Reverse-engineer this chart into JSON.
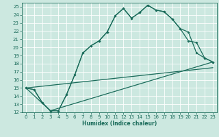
{
  "title": "",
  "xlabel": "Humidex (Indice chaleur)",
  "bg_color": "#cce8e0",
  "grid_color": "#ffffff",
  "line_color": "#1a6b5a",
  "xlim": [
    -0.5,
    23.5
  ],
  "ylim": [
    12,
    25.5
  ],
  "xticks": [
    0,
    1,
    2,
    3,
    4,
    5,
    6,
    7,
    8,
    9,
    10,
    11,
    12,
    13,
    14,
    15,
    16,
    17,
    18,
    19,
    20,
    21,
    22,
    23
  ],
  "yticks": [
    12,
    13,
    14,
    15,
    16,
    17,
    18,
    19,
    20,
    21,
    22,
    23,
    24,
    25
  ],
  "line1_x": [
    0,
    1,
    2,
    3,
    4,
    5,
    6,
    7,
    8,
    9,
    10,
    11,
    12,
    13,
    14,
    15,
    16,
    17,
    18,
    19,
    20,
    21,
    22,
    23
  ],
  "line1_y": [
    15,
    14.8,
    13.2,
    12.2,
    12.2,
    14.2,
    16.6,
    19.3,
    20.2,
    20.8,
    21.9,
    23.9,
    24.8,
    23.6,
    24.3,
    25.2,
    24.6,
    24.4,
    23.5,
    22.3,
    21.9,
    19.3,
    18.7,
    18.2
  ],
  "line2_x": [
    0,
    1,
    2,
    3,
    4,
    5,
    6,
    7,
    8,
    9,
    10,
    11,
    12,
    13,
    14,
    15,
    16,
    17,
    18,
    19,
    20,
    21,
    22,
    23
  ],
  "line2_y": [
    15,
    14.8,
    13.2,
    12.2,
    12.2,
    14.2,
    16.6,
    19.3,
    20.2,
    20.8,
    21.9,
    23.9,
    24.8,
    23.6,
    24.3,
    25.2,
    24.6,
    24.4,
    23.5,
    22.3,
    20.8,
    20.6,
    18.7,
    18.2
  ],
  "line3_x": [
    0,
    3,
    23
  ],
  "line3_y": [
    15,
    12.2,
    18.2
  ],
  "line4_x": [
    0,
    23
  ],
  "line4_y": [
    15,
    17.5
  ],
  "tick_fontsize": 5,
  "xlabel_fontsize": 5.5,
  "marker_size": 2.0,
  "linewidth": 0.9
}
